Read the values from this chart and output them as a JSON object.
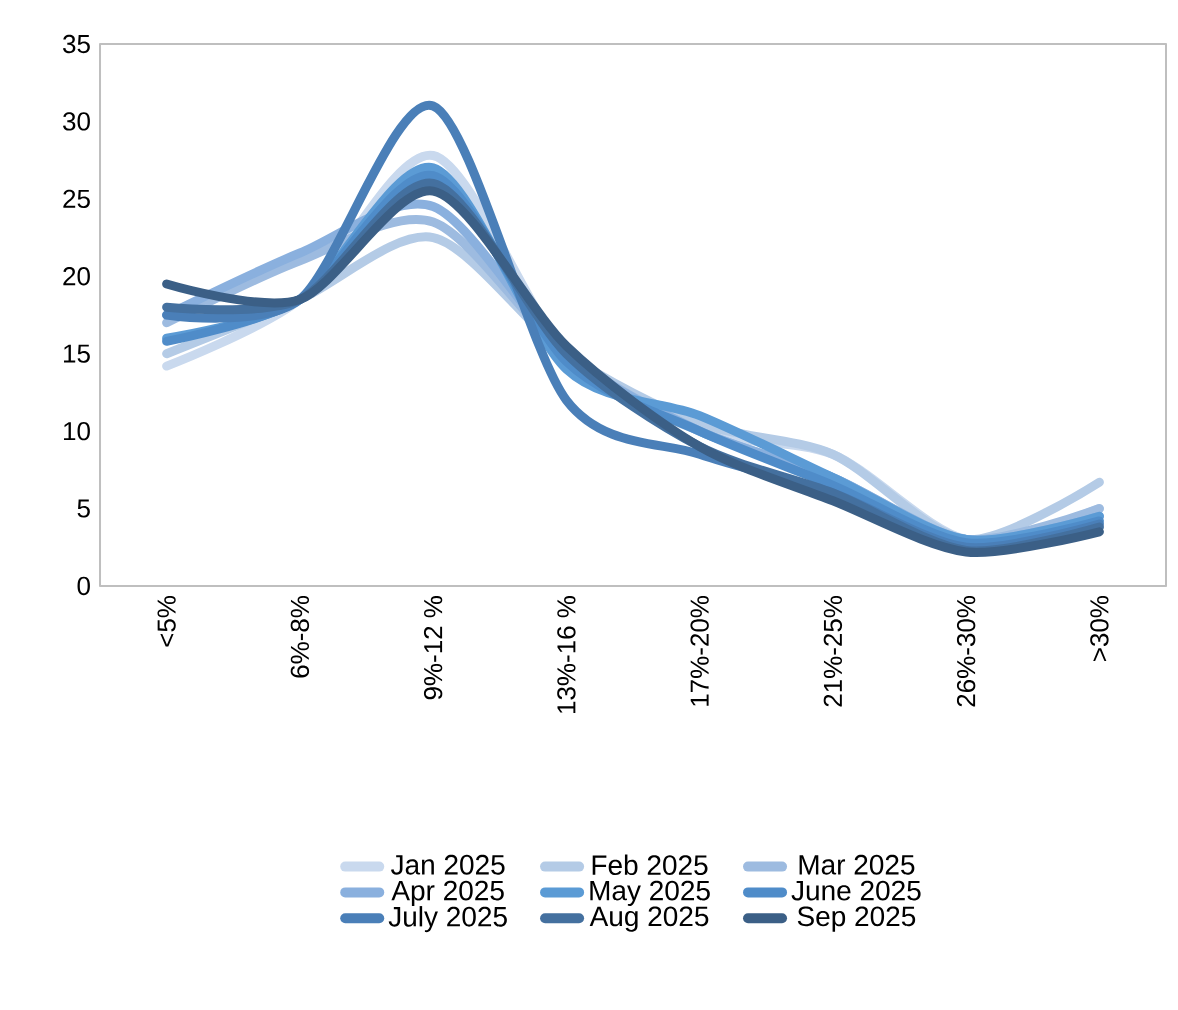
{
  "chart_data": {
    "type": "line",
    "categories": [
      "<5%",
      "6%-8%",
      "9%-12 %",
      "13%-16 %",
      "17%-20%",
      "21%-25%",
      "26%-30%",
      ">30%"
    ],
    "series": [
      {
        "name": "Jan 2025",
        "color": "#c9d9ee",
        "values": [
          14.2,
          18.5,
          27.8,
          15,
          10,
          8.5,
          3,
          5
        ]
      },
      {
        "name": "Feb 2025",
        "color": "#b4cbe6",
        "values": [
          15,
          18.5,
          22.5,
          15,
          10.5,
          8.5,
          3,
          6.7
        ]
      },
      {
        "name": "Mar 2025",
        "color": "#9dbbe0",
        "values": [
          17,
          21,
          23.5,
          15,
          10,
          7,
          3,
          5
        ]
      },
      {
        "name": "Apr 2025",
        "color": "#8ab0de",
        "values": [
          17.5,
          21.5,
          24.5,
          15,
          10,
          7,
          3,
          4.5
        ]
      },
      {
        "name": "May 2025",
        "color": "#5b9bd5",
        "values": [
          16,
          18.5,
          27,
          14,
          11,
          7,
          3,
          4.5
        ]
      },
      {
        "name": "June 2025",
        "color": "#4f8cc9",
        "values": [
          15.8,
          18.5,
          26.5,
          14.5,
          10,
          6.5,
          2.8,
          4.2
        ]
      },
      {
        "name": "July 2025",
        "color": "#4a7fb8",
        "values": [
          17.5,
          18.5,
          31,
          12,
          8.5,
          6,
          2.5,
          4
        ]
      },
      {
        "name": "Aug 2025",
        "color": "#44709f",
        "values": [
          18,
          18.5,
          26,
          15,
          9,
          6,
          2.3,
          3.8
        ]
      },
      {
        "name": "Sep 2025",
        "color": "#3b5f86",
        "values": [
          19.5,
          18.5,
          25.5,
          15.5,
          9,
          5.5,
          2.2,
          3.5
        ]
      }
    ],
    "ylim": [
      0,
      35
    ],
    "yticks": [
      0,
      5,
      10,
      15,
      20,
      25,
      30,
      35
    ],
    "legend": "bottom",
    "marker": "none"
  }
}
